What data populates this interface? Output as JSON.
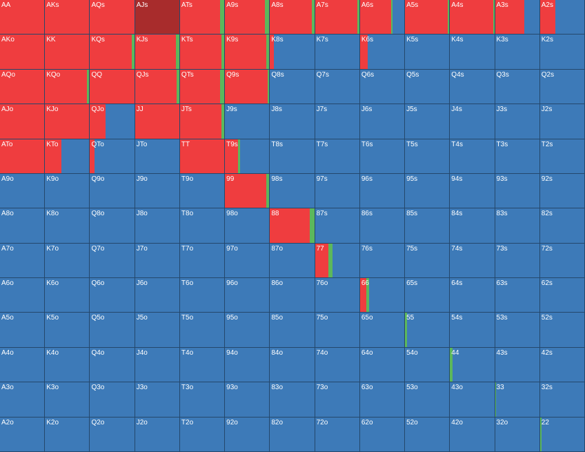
{
  "rows": [
    [
      {
        "l": "AA",
        "r": 1,
        "c": 0
      },
      {
        "l": "AKs",
        "r": 1,
        "c": 0
      },
      {
        "l": "AQs",
        "r": 1,
        "c": 0
      },
      {
        "l": "AJs",
        "r": 1,
        "c": 0,
        "selected": true
      },
      {
        "l": "ATs",
        "r": 0.9,
        "c": 0.1
      },
      {
        "l": "A9s",
        "r": 0.9,
        "c": 0.1
      },
      {
        "l": "A8s",
        "r": 0.95,
        "c": 0.05
      },
      {
        "l": "A7s",
        "r": 0.95,
        "c": 0.05
      },
      {
        "l": "A6s",
        "r": 0.7,
        "c": 0.03
      },
      {
        "l": "A5s",
        "r": 0.97,
        "c": 0.03
      },
      {
        "l": "A4s",
        "r": 0.97,
        "c": 0.03
      },
      {
        "l": "A3s",
        "r": 0.66,
        "c": 0
      },
      {
        "l": "A2s",
        "r": 0.35,
        "c": 0
      }
    ],
    [
      {
        "l": "AKo",
        "r": 1,
        "c": 0
      },
      {
        "l": "KK",
        "r": 1,
        "c": 0
      },
      {
        "l": "KQs",
        "r": 0.95,
        "c": 0.05
      },
      {
        "l": "KJs",
        "r": 0.92,
        "c": 0.08
      },
      {
        "l": "KTs",
        "r": 0.93,
        "c": 0.07
      },
      {
        "l": "K9s",
        "r": 0.93,
        "c": 0.07
      },
      {
        "l": "K8s",
        "r": 0.08,
        "c": 0
      },
      {
        "l": "K7s",
        "r": 0,
        "c": 0
      },
      {
        "l": "K6s",
        "r": 0.17,
        "c": 0
      },
      {
        "l": "K5s",
        "r": 0,
        "c": 0
      },
      {
        "l": "K4s",
        "r": 0,
        "c": 0
      },
      {
        "l": "K3s",
        "r": 0,
        "c": 0
      },
      {
        "l": "K2s",
        "r": 0,
        "c": 0
      }
    ],
    [
      {
        "l": "AQo",
        "r": 1,
        "c": 0
      },
      {
        "l": "KQo",
        "r": 0.95,
        "c": 0.05
      },
      {
        "l": "QQ",
        "r": 1,
        "c": 0
      },
      {
        "l": "QJs",
        "r": 0.94,
        "c": 0.06
      },
      {
        "l": "QTs",
        "r": 0.9,
        "c": 0.1
      },
      {
        "l": "Q9s",
        "r": 0.97,
        "c": 0.03
      },
      {
        "l": "Q8s",
        "r": 0,
        "c": 0
      },
      {
        "l": "Q7s",
        "r": 0,
        "c": 0
      },
      {
        "l": "Q6s",
        "r": 0,
        "c": 0
      },
      {
        "l": "Q5s",
        "r": 0,
        "c": 0
      },
      {
        "l": "Q4s",
        "r": 0,
        "c": 0
      },
      {
        "l": "Q3s",
        "r": 0,
        "c": 0
      },
      {
        "l": "Q2s",
        "r": 0,
        "c": 0
      }
    ],
    [
      {
        "l": "AJo",
        "r": 1,
        "c": 0
      },
      {
        "l": "KJo",
        "r": 1,
        "c": 0
      },
      {
        "l": "QJo",
        "r": 0.35,
        "c": 0
      },
      {
        "l": "JJ",
        "r": 1,
        "c": 0
      },
      {
        "l": "JTs",
        "r": 0.93,
        "c": 0.07
      },
      {
        "l": "J9s",
        "r": 0,
        "c": 0
      },
      {
        "l": "J8s",
        "r": 0,
        "c": 0
      },
      {
        "l": "J7s",
        "r": 0,
        "c": 0
      },
      {
        "l": "J6s",
        "r": 0,
        "c": 0
      },
      {
        "l": "J5s",
        "r": 0,
        "c": 0
      },
      {
        "l": "J4s",
        "r": 0,
        "c": 0
      },
      {
        "l": "J3s",
        "r": 0,
        "c": 0
      },
      {
        "l": "J2s",
        "r": 0,
        "c": 0
      }
    ],
    [
      {
        "l": "ATo",
        "r": 1,
        "c": 0
      },
      {
        "l": "KTo",
        "r": 0.37,
        "c": 0
      },
      {
        "l": "QTo",
        "r": 0.1,
        "c": 0
      },
      {
        "l": "JTo",
        "r": 0,
        "c": 0
      },
      {
        "l": "TT",
        "r": 1,
        "c": 0
      },
      {
        "l": "T9s",
        "r": 0.3,
        "c": 0.04
      },
      {
        "l": "T8s",
        "r": 0,
        "c": 0
      },
      {
        "l": "T7s",
        "r": 0,
        "c": 0
      },
      {
        "l": "T6s",
        "r": 0,
        "c": 0
      },
      {
        "l": "T5s",
        "r": 0,
        "c": 0
      },
      {
        "l": "T4s",
        "r": 0,
        "c": 0
      },
      {
        "l": "T3s",
        "r": 0,
        "c": 0
      },
      {
        "l": "T2s",
        "r": 0,
        "c": 0
      }
    ],
    [
      {
        "l": "A9o",
        "r": 0,
        "c": 0
      },
      {
        "l": "K9o",
        "r": 0,
        "c": 0
      },
      {
        "l": "Q9o",
        "r": 0,
        "c": 0
      },
      {
        "l": "J9o",
        "r": 0,
        "c": 0
      },
      {
        "l": "T9o",
        "r": 0,
        "c": 0
      },
      {
        "l": "99",
        "r": 0.93,
        "c": 0.07
      },
      {
        "l": "98s",
        "r": 0,
        "c": 0
      },
      {
        "l": "97s",
        "r": 0,
        "c": 0
      },
      {
        "l": "96s",
        "r": 0,
        "c": 0
      },
      {
        "l": "95s",
        "r": 0,
        "c": 0
      },
      {
        "l": "94s",
        "r": 0,
        "c": 0
      },
      {
        "l": "93s",
        "r": 0,
        "c": 0
      },
      {
        "l": "92s",
        "r": 0,
        "c": 0
      }
    ],
    [
      {
        "l": "A8o",
        "r": 0,
        "c": 0
      },
      {
        "l": "K8o",
        "r": 0,
        "c": 0
      },
      {
        "l": "Q8o",
        "r": 0,
        "c": 0
      },
      {
        "l": "J8o",
        "r": 0,
        "c": 0
      },
      {
        "l": "T8o",
        "r": 0,
        "c": 0
      },
      {
        "l": "98o",
        "r": 0,
        "c": 0
      },
      {
        "l": "88",
        "r": 0.9,
        "c": 0.1
      },
      {
        "l": "87s",
        "r": 0,
        "c": 0
      },
      {
        "l": "86s",
        "r": 0,
        "c": 0
      },
      {
        "l": "85s",
        "r": 0,
        "c": 0
      },
      {
        "l": "84s",
        "r": 0,
        "c": 0
      },
      {
        "l": "83s",
        "r": 0,
        "c": 0
      },
      {
        "l": "82s",
        "r": 0,
        "c": 0
      }
    ],
    [
      {
        "l": "A7o",
        "r": 0,
        "c": 0
      },
      {
        "l": "K7o",
        "r": 0,
        "c": 0
      },
      {
        "l": "Q7o",
        "r": 0,
        "c": 0
      },
      {
        "l": "J7o",
        "r": 0,
        "c": 0
      },
      {
        "l": "T7o",
        "r": 0,
        "c": 0
      },
      {
        "l": "97o",
        "r": 0,
        "c": 0
      },
      {
        "l": "87o",
        "r": 0,
        "c": 0
      },
      {
        "l": "77",
        "r": 0.3,
        "c": 0.1
      },
      {
        "l": "76s",
        "r": 0,
        "c": 0
      },
      {
        "l": "75s",
        "r": 0,
        "c": 0
      },
      {
        "l": "74s",
        "r": 0,
        "c": 0
      },
      {
        "l": "73s",
        "r": 0,
        "c": 0
      },
      {
        "l": "72s",
        "r": 0,
        "c": 0
      }
    ],
    [
      {
        "l": "A6o",
        "r": 0,
        "c": 0
      },
      {
        "l": "K6o",
        "r": 0,
        "c": 0
      },
      {
        "l": "Q6o",
        "r": 0,
        "c": 0
      },
      {
        "l": "J6o",
        "r": 0,
        "c": 0
      },
      {
        "l": "T6o",
        "r": 0,
        "c": 0
      },
      {
        "l": "96o",
        "r": 0,
        "c": 0
      },
      {
        "l": "86o",
        "r": 0,
        "c": 0
      },
      {
        "l": "76o",
        "r": 0,
        "c": 0
      },
      {
        "l": "66",
        "r": 0.15,
        "c": 0.06
      },
      {
        "l": "65s",
        "r": 0,
        "c": 0
      },
      {
        "l": "64s",
        "r": 0,
        "c": 0
      },
      {
        "l": "63s",
        "r": 0,
        "c": 0
      },
      {
        "l": "62s",
        "r": 0,
        "c": 0
      }
    ],
    [
      {
        "l": "A5o",
        "r": 0,
        "c": 0
      },
      {
        "l": "K5o",
        "r": 0,
        "c": 0
      },
      {
        "l": "Q5o",
        "r": 0,
        "c": 0
      },
      {
        "l": "J5o",
        "r": 0,
        "c": 0
      },
      {
        "l": "T5o",
        "r": 0,
        "c": 0
      },
      {
        "l": "95o",
        "r": 0,
        "c": 0
      },
      {
        "l": "85o",
        "r": 0,
        "c": 0
      },
      {
        "l": "75o",
        "r": 0,
        "c": 0
      },
      {
        "l": "65o",
        "r": 0,
        "c": 0
      },
      {
        "l": "55",
        "r": 0,
        "c": 0.05
      },
      {
        "l": "54s",
        "r": 0,
        "c": 0
      },
      {
        "l": "53s",
        "r": 0,
        "c": 0
      },
      {
        "l": "52s",
        "r": 0,
        "c": 0
      }
    ],
    [
      {
        "l": "A4o",
        "r": 0,
        "c": 0
      },
      {
        "l": "K4o",
        "r": 0,
        "c": 0
      },
      {
        "l": "Q4o",
        "r": 0,
        "c": 0
      },
      {
        "l": "J4o",
        "r": 0,
        "c": 0
      },
      {
        "l": "T4o",
        "r": 0,
        "c": 0
      },
      {
        "l": "94o",
        "r": 0,
        "c": 0
      },
      {
        "l": "84o",
        "r": 0,
        "c": 0
      },
      {
        "l": "74o",
        "r": 0,
        "c": 0
      },
      {
        "l": "64o",
        "r": 0,
        "c": 0
      },
      {
        "l": "54o",
        "r": 0,
        "c": 0
      },
      {
        "l": "44",
        "r": 0,
        "c": 0.05
      },
      {
        "l": "43s",
        "r": 0,
        "c": 0
      },
      {
        "l": "42s",
        "r": 0,
        "c": 0
      }
    ],
    [
      {
        "l": "A3o",
        "r": 0,
        "c": 0
      },
      {
        "l": "K3o",
        "r": 0,
        "c": 0
      },
      {
        "l": "Q3o",
        "r": 0,
        "c": 0
      },
      {
        "l": "J3o",
        "r": 0,
        "c": 0
      },
      {
        "l": "T3o",
        "r": 0,
        "c": 0
      },
      {
        "l": "93o",
        "r": 0,
        "c": 0
      },
      {
        "l": "83o",
        "r": 0,
        "c": 0
      },
      {
        "l": "73o",
        "r": 0,
        "c": 0
      },
      {
        "l": "63o",
        "r": 0,
        "c": 0
      },
      {
        "l": "53o",
        "r": 0,
        "c": 0
      },
      {
        "l": "43o",
        "r": 0,
        "c": 0
      },
      {
        "l": "33",
        "r": 0,
        "c": 0.03
      },
      {
        "l": "32s",
        "r": 0,
        "c": 0
      }
    ],
    [
      {
        "l": "A2o",
        "r": 0,
        "c": 0
      },
      {
        "l": "K2o",
        "r": 0,
        "c": 0
      },
      {
        "l": "Q2o",
        "r": 0,
        "c": 0
      },
      {
        "l": "J2o",
        "r": 0,
        "c": 0
      },
      {
        "l": "T2o",
        "r": 0,
        "c": 0
      },
      {
        "l": "92o",
        "r": 0,
        "c": 0
      },
      {
        "l": "82o",
        "r": 0,
        "c": 0
      },
      {
        "l": "72o",
        "r": 0,
        "c": 0
      },
      {
        "l": "62o",
        "r": 0,
        "c": 0
      },
      {
        "l": "52o",
        "r": 0,
        "c": 0
      },
      {
        "l": "42o",
        "r": 0,
        "c": 0
      },
      {
        "l": "32o",
        "r": 0,
        "c": 0
      },
      {
        "l": "22",
        "r": 0,
        "c": 0.03
      }
    ]
  ]
}
